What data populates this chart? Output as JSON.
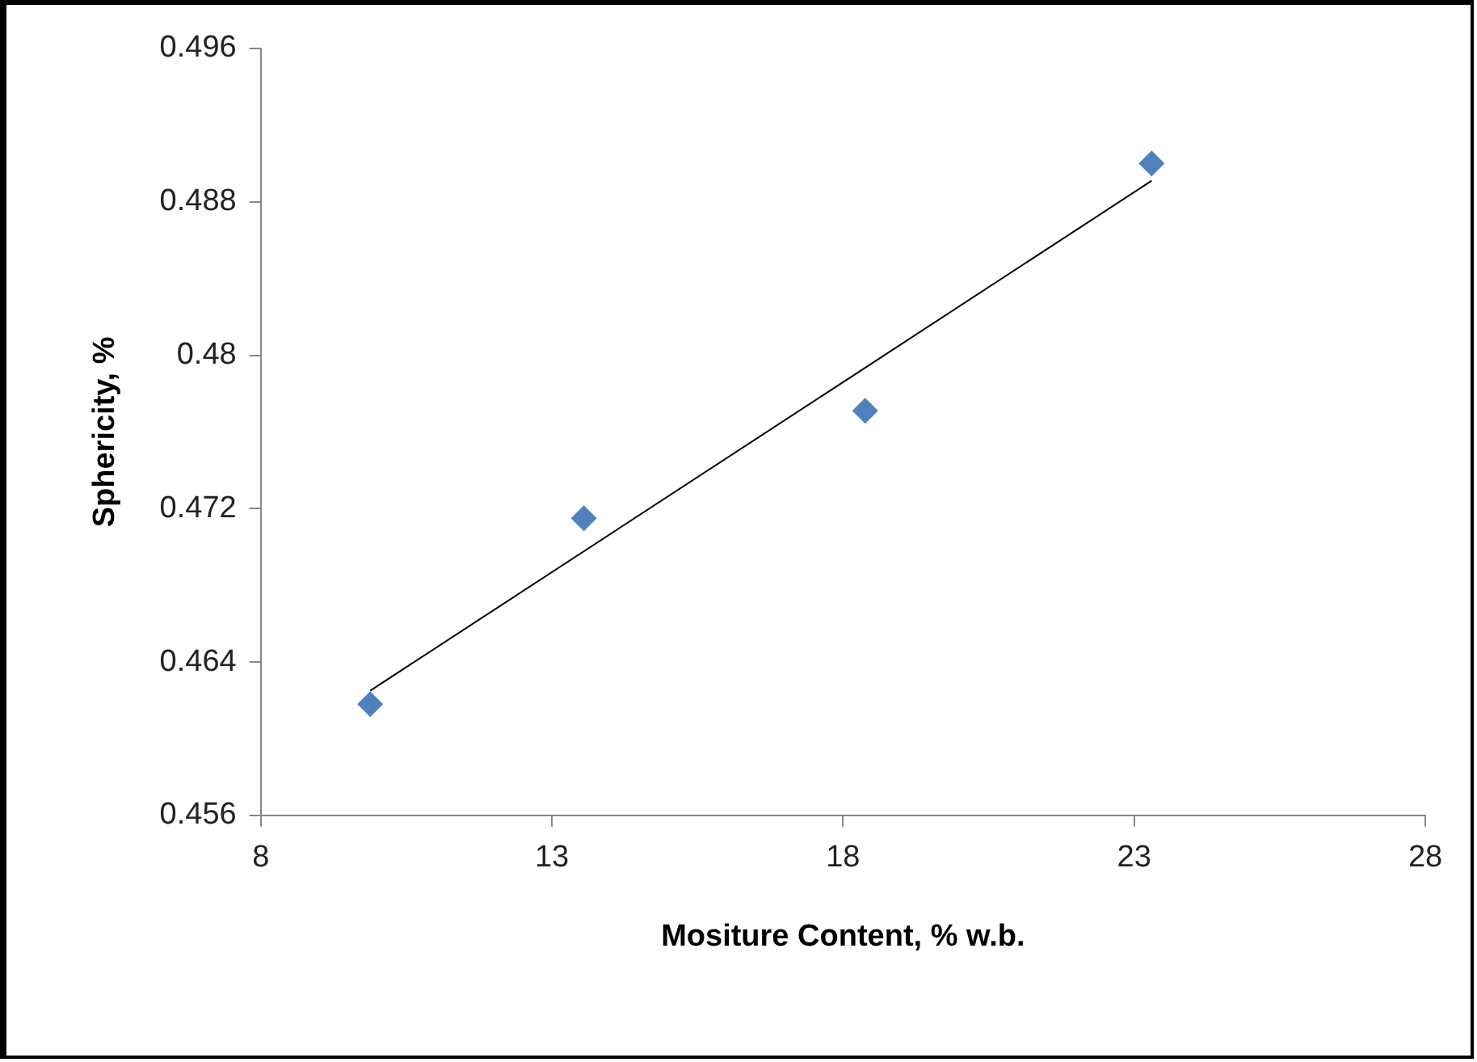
{
  "chart_data": {
    "type": "scatter",
    "xlabel": "Mositure Content, % w.b.",
    "ylabel": "Sphericity, %",
    "xlim": [
      8,
      28
    ],
    "xticks": [
      8,
      13,
      18,
      23,
      28
    ],
    "ylim": [
      0.456,
      0.496
    ],
    "yticks": [
      0.456,
      0.464,
      0.472,
      0.48,
      0.488,
      0.496
    ],
    "legend": false,
    "series": [
      {
        "color": "#4f81bd",
        "marker": "diamond",
        "x": [
          9.88,
          13.55,
          18.38,
          23.3
        ],
        "values": [
          0.4618,
          0.4715,
          0.4771,
          0.49
        ]
      },
      {
        "type": "line",
        "color": "#000000",
        "marker": "none",
        "line_style": "solid",
        "x": [
          9.88,
          23.3
        ],
        "values": [
          0.4625,
          0.4891
        ]
      }
    ]
  }
}
